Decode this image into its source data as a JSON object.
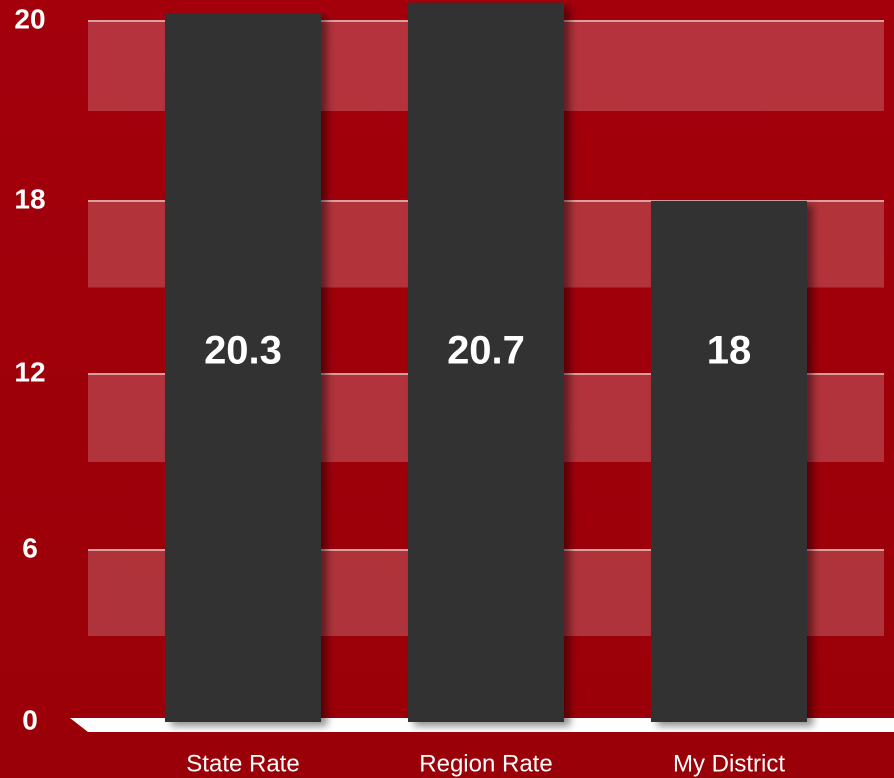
{
  "chart_data": {
    "type": "bar",
    "categories": [
      "State Rate",
      "Region Rate",
      "My District"
    ],
    "values": [
      20.3,
      20.7,
      18
    ],
    "color": "#333333",
    "ylim": [
      0,
      20.8
    ],
    "yticks": [
      0,
      6,
      12,
      18,
      20
    ],
    "grid": true
  }
}
